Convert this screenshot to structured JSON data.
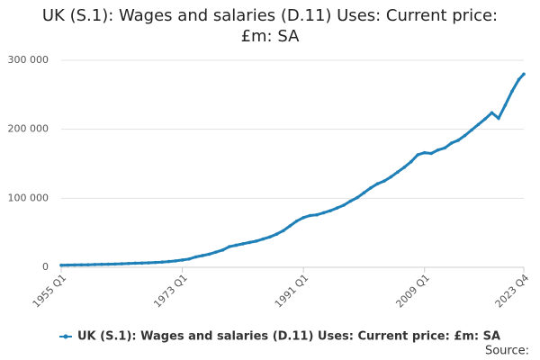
{
  "chart_data": {
    "type": "line",
    "title": "UK (S.1): Wages and salaries (D.11) Uses: Current price: £m: SA",
    "x": [
      "1955 Q1",
      "1956 Q1",
      "1957 Q1",
      "1958 Q1",
      "1959 Q1",
      "1960 Q1",
      "1961 Q1",
      "1962 Q1",
      "1963 Q1",
      "1964 Q1",
      "1965 Q1",
      "1966 Q1",
      "1967 Q1",
      "1968 Q1",
      "1969 Q1",
      "1970 Q1",
      "1971 Q1",
      "1972 Q1",
      "1973 Q1",
      "1974 Q1",
      "1975 Q1",
      "1976 Q1",
      "1977 Q1",
      "1978 Q1",
      "1979 Q1",
      "1980 Q1",
      "1981 Q1",
      "1982 Q1",
      "1983 Q1",
      "1984 Q1",
      "1985 Q1",
      "1986 Q1",
      "1987 Q1",
      "1988 Q1",
      "1989 Q1",
      "1990 Q1",
      "1991 Q1",
      "1992 Q1",
      "1993 Q1",
      "1994 Q1",
      "1995 Q1",
      "1996 Q1",
      "1997 Q1",
      "1998 Q1",
      "1999 Q1",
      "2000 Q1",
      "2001 Q1",
      "2002 Q1",
      "2003 Q1",
      "2004 Q1",
      "2005 Q1",
      "2006 Q1",
      "2007 Q1",
      "2008 Q1",
      "2009 Q1",
      "2010 Q1",
      "2011 Q1",
      "2012 Q1",
      "2013 Q1",
      "2014 Q1",
      "2015 Q1",
      "2016 Q1",
      "2017 Q1",
      "2018 Q1",
      "2019 Q1",
      "2020 Q1",
      "2021 Q1",
      "2022 Q1",
      "2023 Q1",
      "2023 Q4"
    ],
    "series": [
      {
        "name": "UK (S.1): Wages and salaries (D.11) Uses: Current price: £m: SA",
        "color": "#1f80b8",
        "values": [
          3000,
          3200,
          3400,
          3500,
          3700,
          4000,
          4300,
          4500,
          4700,
          5100,
          5500,
          5900,
          6100,
          6500,
          7000,
          7600,
          8400,
          9300,
          10500,
          12000,
          15000,
          17000,
          19000,
          22000,
          25000,
          30000,
          32000,
          34000,
          36000,
          38000,
          41000,
          44000,
          48000,
          53000,
          60000,
          67000,
          72000,
          75000,
          76000,
          79000,
          82000,
          86000,
          90000,
          96000,
          101000,
          108000,
          115000,
          121000,
          125000,
          131000,
          138000,
          145000,
          153000,
          163000,
          166000,
          165000,
          170000,
          173000,
          180000,
          184000,
          191000,
          199000,
          207000,
          215000,
          224000,
          216000,
          235000,
          255000,
          272000,
          280000
        ]
      }
    ],
    "xlim": [
      "1955 Q1",
      "2023 Q4"
    ],
    "xticks": [
      "1955 Q1",
      "1973 Q1",
      "1991 Q1",
      "2009 Q1",
      "2023 Q4"
    ],
    "ylim": [
      0,
      300000
    ],
    "yticks": [
      0,
      {
        "value": 100000,
        "label": "100 000"
      },
      {
        "value": 200000,
        "label": "200 000"
      },
      {
        "value": 300000,
        "label": "300 000"
      }
    ],
    "grid": true,
    "source": "Source:"
  }
}
